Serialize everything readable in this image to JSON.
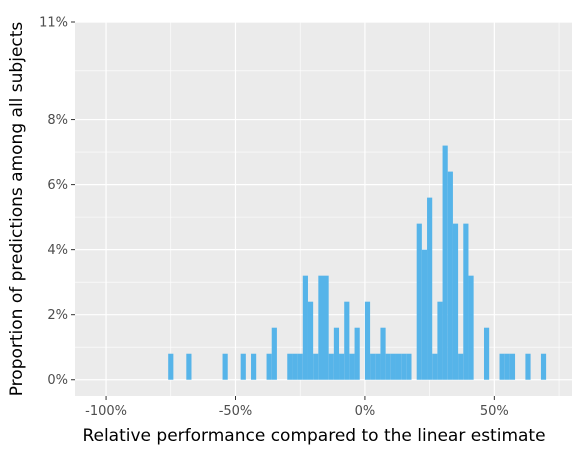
{
  "chart_data": {
    "type": "bar",
    "title": "",
    "xlabel": "Relative performance compared to the linear estimate",
    "ylabel": "Proportion of predictions among all subjects",
    "xlim": [
      -1.12,
      0.8
    ],
    "ylim": [
      -0.005,
      0.11
    ],
    "grid": true,
    "background": "#EBEBEB",
    "bar_color": "#56B4E9",
    "grid_color": "#FFFFFF",
    "x_ticks": [
      {
        "value": -1.0,
        "label": "-100%"
      },
      {
        "value": -0.5,
        "label": "-50%"
      },
      {
        "value": 0.0,
        "label": "0%"
      },
      {
        "value": 0.5,
        "label": "50%"
      }
    ],
    "y_ticks": [
      {
        "value": 0.0,
        "label": "0%"
      },
      {
        "value": 0.02,
        "label": "2%"
      },
      {
        "value": 0.04,
        "label": "4%"
      },
      {
        "value": 0.06,
        "label": "6%"
      },
      {
        "value": 0.08,
        "label": "8%"
      },
      {
        "value": 0.11,
        "label": "11%"
      }
    ],
    "bin_width": 0.02,
    "bins": [
      {
        "x": -0.75,
        "y": 0.008
      },
      {
        "x": -0.68,
        "y": 0.008
      },
      {
        "x": -0.54,
        "y": 0.008
      },
      {
        "x": -0.47,
        "y": 0.008
      },
      {
        "x": -0.43,
        "y": 0.008
      },
      {
        "x": -0.37,
        "y": 0.008
      },
      {
        "x": -0.35,
        "y": 0.016
      },
      {
        "x": -0.29,
        "y": 0.008
      },
      {
        "x": -0.27,
        "y": 0.008
      },
      {
        "x": -0.25,
        "y": 0.008
      },
      {
        "x": -0.23,
        "y": 0.032
      },
      {
        "x": -0.21,
        "y": 0.024
      },
      {
        "x": -0.19,
        "y": 0.008
      },
      {
        "x": -0.17,
        "y": 0.032
      },
      {
        "x": -0.15,
        "y": 0.032
      },
      {
        "x": -0.13,
        "y": 0.008
      },
      {
        "x": -0.11,
        "y": 0.016
      },
      {
        "x": -0.09,
        "y": 0.008
      },
      {
        "x": -0.07,
        "y": 0.024
      },
      {
        "x": -0.05,
        "y": 0.008
      },
      {
        "x": -0.03,
        "y": 0.016
      },
      {
        "x": 0.01,
        "y": 0.024
      },
      {
        "x": 0.03,
        "y": 0.008
      },
      {
        "x": 0.05,
        "y": 0.008
      },
      {
        "x": 0.07,
        "y": 0.016
      },
      {
        "x": 0.09,
        "y": 0.008
      },
      {
        "x": 0.11,
        "y": 0.008
      },
      {
        "x": 0.13,
        "y": 0.008
      },
      {
        "x": 0.15,
        "y": 0.008
      },
      {
        "x": 0.17,
        "y": 0.008
      },
      {
        "x": 0.21,
        "y": 0.048
      },
      {
        "x": 0.23,
        "y": 0.04
      },
      {
        "x": 0.25,
        "y": 0.056
      },
      {
        "x": 0.27,
        "y": 0.008
      },
      {
        "x": 0.29,
        "y": 0.024
      },
      {
        "x": 0.31,
        "y": 0.072
      },
      {
        "x": 0.33,
        "y": 0.064
      },
      {
        "x": 0.35,
        "y": 0.048
      },
      {
        "x": 0.37,
        "y": 0.008
      },
      {
        "x": 0.39,
        "y": 0.048
      },
      {
        "x": 0.41,
        "y": 0.032
      },
      {
        "x": 0.47,
        "y": 0.016
      },
      {
        "x": 0.53,
        "y": 0.008
      },
      {
        "x": 0.55,
        "y": 0.008
      },
      {
        "x": 0.57,
        "y": 0.008
      },
      {
        "x": 0.63,
        "y": 0.008
      },
      {
        "x": 0.69,
        "y": 0.008
      }
    ]
  }
}
